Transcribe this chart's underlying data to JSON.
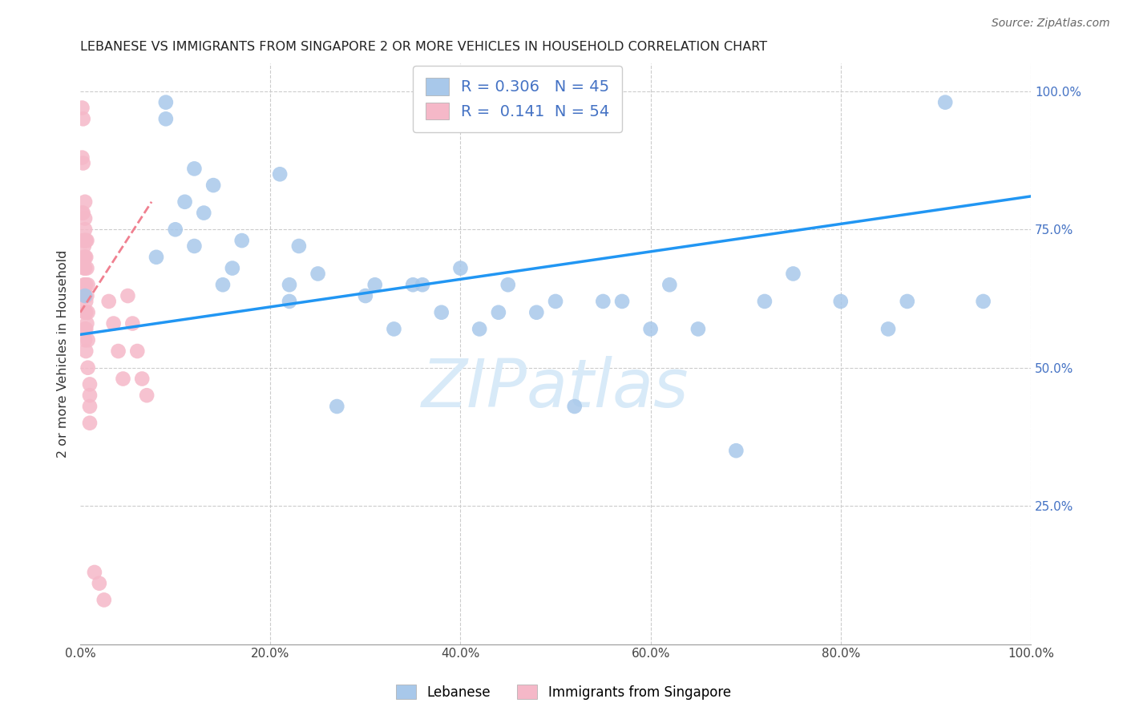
{
  "title": "LEBANESE VS IMMIGRANTS FROM SINGAPORE 2 OR MORE VEHICLES IN HOUSEHOLD CORRELATION CHART",
  "source": "Source: ZipAtlas.com",
  "ylabel": "2 or more Vehicles in Household",
  "legend1_label": "Lebanese",
  "legend2_label": "Immigrants from Singapore",
  "R_blue": 0.306,
  "N_blue": 45,
  "R_pink": 0.141,
  "N_pink": 54,
  "blue_color": "#a8c8ea",
  "pink_color": "#f5b8c8",
  "blue_line_color": "#2196f3",
  "pink_line_color": "#f08090",
  "watermark_color": "#d8eaf8",
  "grid_color": "#cccccc",
  "blue_scatter_x": [
    0.005,
    0.08,
    0.09,
    0.09,
    0.1,
    0.11,
    0.12,
    0.12,
    0.13,
    0.14,
    0.15,
    0.16,
    0.17,
    0.21,
    0.22,
    0.22,
    0.23,
    0.25,
    0.27,
    0.3,
    0.31,
    0.33,
    0.35,
    0.36,
    0.38,
    0.4,
    0.42,
    0.44,
    0.45,
    0.48,
    0.5,
    0.52,
    0.55,
    0.57,
    0.6,
    0.62,
    0.65,
    0.69,
    0.72,
    0.75,
    0.8,
    0.85,
    0.87,
    0.91,
    0.95
  ],
  "blue_scatter_y": [
    0.63,
    0.7,
    0.98,
    0.95,
    0.75,
    0.8,
    0.86,
    0.72,
    0.78,
    0.83,
    0.65,
    0.68,
    0.73,
    0.85,
    0.62,
    0.65,
    0.72,
    0.67,
    0.43,
    0.63,
    0.65,
    0.57,
    0.65,
    0.65,
    0.6,
    0.68,
    0.57,
    0.6,
    0.65,
    0.6,
    0.62,
    0.43,
    0.62,
    0.62,
    0.57,
    0.65,
    0.57,
    0.35,
    0.62,
    0.67,
    0.62,
    0.57,
    0.62,
    0.98,
    0.62
  ],
  "pink_scatter_x": [
    0.002,
    0.002,
    0.002,
    0.003,
    0.003,
    0.003,
    0.003,
    0.004,
    0.004,
    0.004,
    0.004,
    0.004,
    0.005,
    0.005,
    0.005,
    0.005,
    0.005,
    0.005,
    0.005,
    0.005,
    0.005,
    0.005,
    0.005,
    0.006,
    0.006,
    0.006,
    0.006,
    0.006,
    0.006,
    0.006,
    0.007,
    0.007,
    0.007,
    0.007,
    0.008,
    0.008,
    0.008,
    0.008,
    0.01,
    0.01,
    0.01,
    0.01,
    0.015,
    0.02,
    0.025,
    0.03,
    0.035,
    0.04,
    0.045,
    0.05,
    0.055,
    0.06,
    0.065,
    0.07
  ],
  "pink_scatter_y": [
    0.97,
    0.88,
    0.78,
    0.95,
    0.87,
    0.78,
    0.73,
    0.73,
    0.72,
    0.7,
    0.68,
    0.65,
    0.8,
    0.77,
    0.75,
    0.73,
    0.7,
    0.68,
    0.65,
    0.63,
    0.6,
    0.57,
    0.55,
    0.73,
    0.7,
    0.65,
    0.62,
    0.6,
    0.57,
    0.53,
    0.73,
    0.68,
    0.63,
    0.58,
    0.65,
    0.6,
    0.55,
    0.5,
    0.47,
    0.45,
    0.43,
    0.4,
    0.13,
    0.11,
    0.08,
    0.62,
    0.58,
    0.53,
    0.48,
    0.63,
    0.58,
    0.53,
    0.48,
    0.45
  ],
  "blue_line_x0": 0.0,
  "blue_line_x1": 1.0,
  "blue_line_y0": 0.56,
  "blue_line_y1": 0.81,
  "pink_line_x0": 0.0,
  "pink_line_x1": 0.075,
  "pink_line_y0": 0.6,
  "pink_line_y1": 0.8,
  "xlim": [
    0.0,
    1.0
  ],
  "ylim": [
    0.0,
    1.05
  ],
  "x_ticks": [
    0.0,
    0.2,
    0.4,
    0.6,
    0.8,
    1.0
  ],
  "x_tick_labels": [
    "0.0%",
    "20.0%",
    "40.0%",
    "60.0%",
    "80.0%",
    "100.0%"
  ],
  "y_ticks_right": [
    0.25,
    0.5,
    0.75,
    1.0
  ],
  "y_tick_labels_right": [
    "25.0%",
    "50.0%",
    "75.0%",
    "100.0%"
  ]
}
